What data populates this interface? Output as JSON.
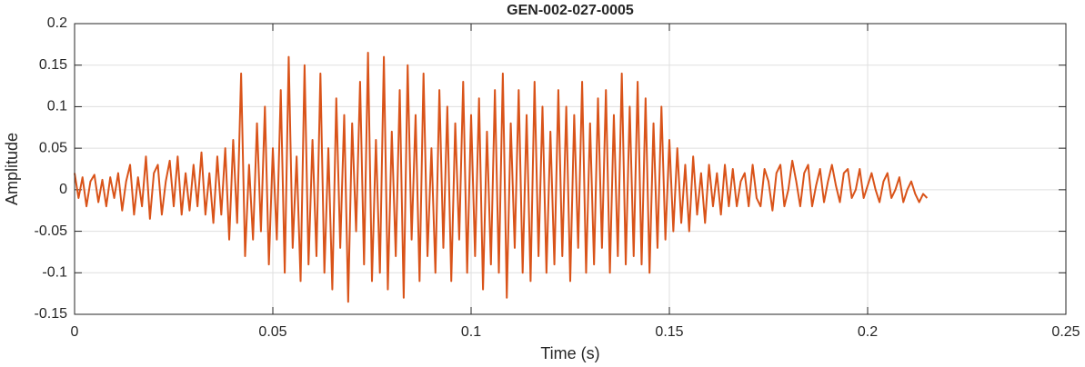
{
  "chart_data": {
    "type": "line",
    "title": "GEN-002-027-0005",
    "xlabel": "Time (s)",
    "ylabel": "Amplitude",
    "x": [
      0,
      0.001,
      0.002,
      0.003,
      0.004,
      0.005,
      0.006,
      0.007,
      0.008,
      0.009,
      0.01,
      0.011,
      0.012,
      0.013,
      0.014,
      0.015,
      0.016,
      0.017,
      0.018,
      0.019,
      0.02,
      0.021,
      0.022,
      0.023,
      0.024,
      0.025,
      0.026,
      0.027,
      0.028,
      0.029,
      0.03,
      0.031,
      0.032,
      0.033,
      0.034,
      0.035,
      0.036,
      0.037,
      0.038,
      0.039,
      0.04,
      0.041,
      0.042,
      0.043,
      0.044,
      0.045,
      0.046,
      0.047,
      0.048,
      0.049,
      0.05,
      0.051,
      0.052,
      0.053,
      0.054,
      0.055,
      0.056,
      0.057,
      0.058,
      0.059,
      0.06,
      0.061,
      0.062,
      0.063,
      0.064,
      0.065,
      0.066,
      0.067,
      0.068,
      0.069,
      0.07,
      0.071,
      0.072,
      0.073,
      0.074,
      0.075,
      0.076,
      0.077,
      0.078,
      0.079,
      0.08,
      0.081,
      0.082,
      0.083,
      0.084,
      0.085,
      0.086,
      0.087,
      0.088,
      0.089,
      0.09,
      0.091,
      0.092,
      0.093,
      0.094,
      0.095,
      0.096,
      0.097,
      0.098,
      0.099,
      0.1,
      0.101,
      0.102,
      0.103,
      0.104,
      0.105,
      0.106,
      0.107,
      0.108,
      0.109,
      0.11,
      0.111,
      0.112,
      0.113,
      0.114,
      0.115,
      0.116,
      0.117,
      0.118,
      0.119,
      0.12,
      0.121,
      0.122,
      0.123,
      0.124,
      0.125,
      0.126,
      0.127,
      0.128,
      0.129,
      0.13,
      0.131,
      0.132,
      0.133,
      0.134,
      0.135,
      0.136,
      0.137,
      0.138,
      0.139,
      0.14,
      0.141,
      0.142,
      0.143,
      0.144,
      0.145,
      0.146,
      0.147,
      0.148,
      0.149,
      0.15,
      0.151,
      0.152,
      0.153,
      0.154,
      0.155,
      0.156,
      0.157,
      0.158,
      0.159,
      0.16,
      0.161,
      0.162,
      0.163,
      0.164,
      0.165,
      0.166,
      0.167,
      0.168,
      0.169,
      0.17,
      0.171,
      0.172,
      0.173,
      0.174,
      0.175,
      0.176,
      0.177,
      0.178,
      0.179,
      0.18,
      0.181,
      0.182,
      0.183,
      0.184,
      0.185,
      0.186,
      0.187,
      0.188,
      0.189,
      0.19,
      0.191,
      0.192,
      0.193,
      0.194,
      0.195,
      0.196,
      0.197,
      0.198,
      0.199,
      0.2,
      0.201,
      0.202,
      0.203,
      0.204,
      0.205,
      0.206,
      0.207,
      0.208,
      0.209,
      0.21,
      0.211,
      0.212,
      0.213,
      0.214,
      0.215
    ],
    "values": [
      0.02,
      -0.01,
      0.015,
      -0.02,
      0.01,
      0.018,
      -0.015,
      0.012,
      -0.02,
      0.015,
      -0.01,
      0.02,
      -0.025,
      0.01,
      0.03,
      -0.03,
      0.015,
      -0.02,
      0.04,
      -0.035,
      0.02,
      0.03,
      -0.03,
      0.01,
      0.035,
      -0.02,
      0.04,
      -0.03,
      0.02,
      -0.025,
      0.03,
      -0.02,
      0.045,
      -0.03,
      0.02,
      -0.04,
      0.04,
      -0.03,
      0.05,
      -0.06,
      0.06,
      -0.04,
      0.14,
      -0.08,
      0.03,
      -0.06,
      0.08,
      -0.05,
      0.1,
      -0.09,
      0.05,
      -0.06,
      0.12,
      -0.1,
      0.16,
      -0.07,
      0.04,
      -0.11,
      0.15,
      -0.09,
      0.06,
      -0.08,
      0.14,
      -0.1,
      0.05,
      -0.12,
      0.11,
      -0.07,
      0.09,
      -0.135,
      0.08,
      -0.05,
      0.13,
      -0.09,
      0.165,
      -0.11,
      0.06,
      -0.1,
      0.16,
      -0.12,
      0.07,
      -0.08,
      0.12,
      -0.13,
      0.15,
      -0.06,
      0.09,
      -0.11,
      0.14,
      -0.08,
      0.05,
      -0.1,
      0.12,
      -0.07,
      0.1,
      -0.11,
      0.08,
      -0.06,
      0.13,
      -0.1,
      0.09,
      -0.08,
      0.11,
      -0.12,
      0.07,
      -0.09,
      0.12,
      -0.1,
      0.14,
      -0.13,
      0.08,
      -0.07,
      0.12,
      -0.1,
      0.09,
      -0.11,
      0.13,
      -0.08,
      0.1,
      -0.1,
      0.07,
      -0.09,
      0.12,
      -0.08,
      0.1,
      -0.11,
      0.09,
      -0.07,
      0.13,
      -0.1,
      0.08,
      -0.09,
      0.11,
      -0.07,
      0.12,
      -0.1,
      0.09,
      -0.08,
      0.14,
      -0.09,
      0.1,
      -0.08,
      0.13,
      -0.09,
      0.11,
      -0.1,
      0.08,
      -0.07,
      0.1,
      -0.06,
      0.06,
      -0.05,
      0.05,
      -0.04,
      0.03,
      -0.05,
      0.04,
      -0.03,
      0.02,
      -0.04,
      0.03,
      -0.02,
      0.02,
      -0.03,
      0.03,
      -0.02,
      0.025,
      -0.02,
      0.01,
      0.02,
      -0.02,
      0.03,
      -0.01,
      -0.02,
      0.025,
      0.01,
      -0.025,
      0.02,
      0.03,
      -0.02,
      0.0,
      0.035,
      0.01,
      -0.02,
      0.02,
      0.03,
      -0.02,
      0.005,
      0.025,
      -0.015,
      0.01,
      0.03,
      0.005,
      -0.015,
      0.02,
      0.025,
      -0.01,
      0.0,
      0.025,
      -0.01,
      0.005,
      0.02,
      0.0,
      -0.015,
      0.01,
      0.02,
      -0.01,
      0.0,
      0.015,
      -0.015,
      0.0,
      0.01,
      -0.005,
      -0.015,
      -0.005,
      -0.01
    ],
    "color": "#d95319",
    "xlim": [
      0,
      0.25
    ],
    "xticks": [
      0,
      0.05,
      0.1,
      0.15,
      0.2,
      0.25
    ],
    "ylim": [
      -0.15,
      0.2
    ],
    "yticks": [
      -0.15,
      -0.1,
      -0.05,
      0,
      0.05,
      0.1,
      0.15,
      0.2
    ],
    "grid": true
  }
}
